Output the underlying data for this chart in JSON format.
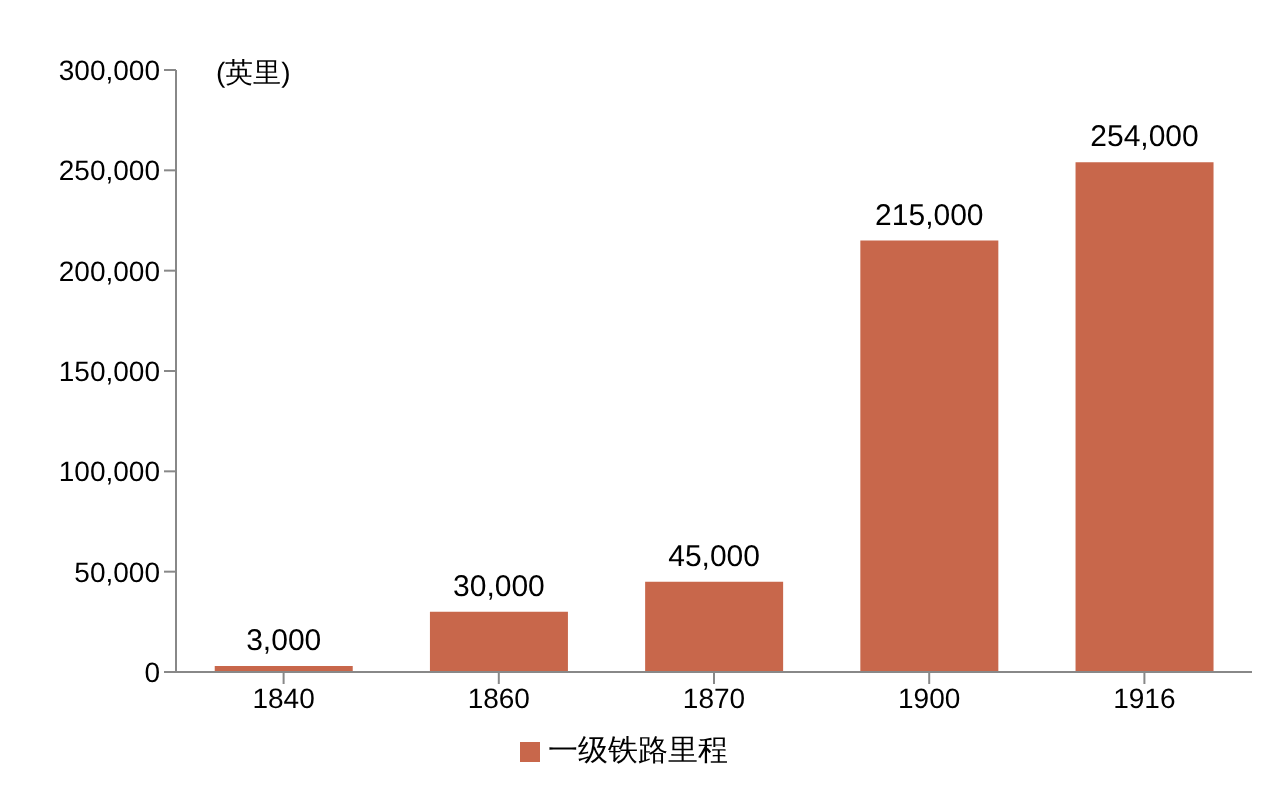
{
  "chart_data": {
    "type": "bar",
    "ylabel": "(英里)",
    "categories": [
      "1840",
      "1860",
      "1870",
      "1900",
      "1916"
    ],
    "series": [
      {
        "name": "一级铁路里程",
        "color": "#c8674b",
        "values": [
          3000,
          30000,
          45000,
          215000,
          254000
        ],
        "value_labels": [
          "3,000",
          "30,000",
          "45,000",
          "215,000",
          "254,000"
        ]
      }
    ],
    "ylim": [
      0,
      300000
    ],
    "yticks": [
      0,
      {
        "value": 50000,
        "label": "50,000"
      },
      {
        "value": 100000,
        "label": "100,000"
      },
      {
        "value": 150000,
        "label": "150,000"
      },
      {
        "value": 200000,
        "label": "200,000"
      },
      {
        "value": 250000,
        "label": "250,000"
      },
      {
        "value": 300000,
        "label": "300,000"
      }
    ],
    "grid": false,
    "legend": "bottom"
  }
}
